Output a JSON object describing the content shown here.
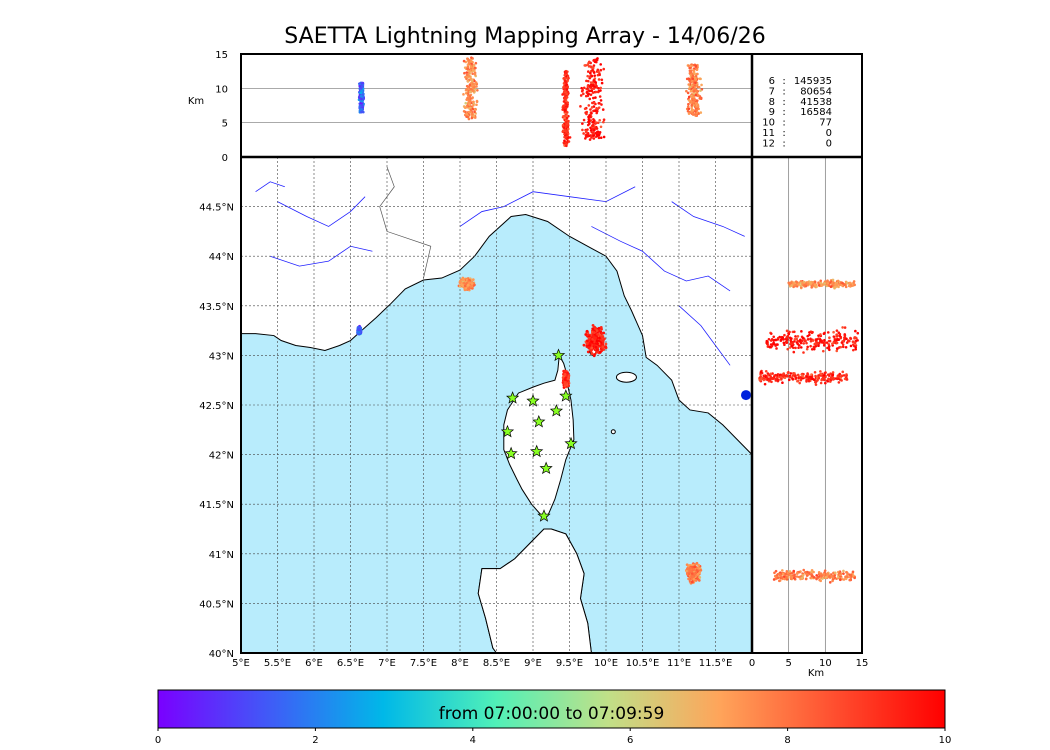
{
  "title": "SAETTA Lightning Mapping Array - 14/06/26",
  "colors": {
    "sea": "#b8ecfc",
    "land": "#ffffff",
    "river": "#2020ff",
    "grid": "#444444",
    "high_src": "#ff3d1a",
    "mid_src": "#ff9a55",
    "low_src": "#30b0ff"
  },
  "stats_panel": {
    "rows": [
      {
        "level": "6",
        "count": "145935",
        "color": "#000000"
      },
      {
        "level": "7",
        "count": "80654",
        "color": "#ff0000"
      },
      {
        "level": "8",
        "count": "41538",
        "color": "#000000"
      },
      {
        "level": "9",
        "count": "16584",
        "color": "#000000"
      },
      {
        "level": "10",
        "count": "77",
        "color": "#000000"
      },
      {
        "level": "11",
        "count": "0",
        "color": "#000000"
      },
      {
        "level": "12",
        "count": "0",
        "color": "#000000"
      }
    ]
  },
  "colorbar": {
    "label": "from 07:00:00 to 07:09:59",
    "ticks": [
      "0",
      "2",
      "4",
      "6",
      "8",
      "10"
    ],
    "stops": [
      "#7a00ff",
      "#3f5cf7",
      "#00b8e8",
      "#50f0b8",
      "#c0e088",
      "#ffa45a",
      "#ff5030",
      "#ff0000"
    ]
  },
  "chart_data": [
    {
      "type": "scatter",
      "panel": "map",
      "xlabel": "",
      "ylabel": "",
      "xlim": [
        5,
        12
      ],
      "ylim": [
        40,
        45
      ],
      "x_ticks": [
        "5°E",
        "5.5°E",
        "6°E",
        "6.5°E",
        "7°E",
        "7.5°E",
        "8°E",
        "8.5°E",
        "9°E",
        "9.5°E",
        "10°E",
        "10.5°E",
        "11°E",
        "11.5°E"
      ],
      "y_ticks": [
        "40°N",
        "40.5°N",
        "41°N",
        "41.5°N",
        "42°N",
        "42.5°N",
        "43°N",
        "43.5°N",
        "44°N",
        "44.5°N"
      ],
      "grid": true,
      "clusters": [
        {
          "lon": 8.1,
          "lat": 43.72,
          "spread_lon": 0.12,
          "spread_lat": 0.07,
          "time": 7.5
        },
        {
          "lon": 9.85,
          "lat": 43.15,
          "spread_lon": 0.18,
          "spread_lat": 0.18,
          "time": 9.5
        },
        {
          "lon": 9.45,
          "lat": 42.76,
          "spread_lon": 0.05,
          "spread_lat": 0.1,
          "time": 9.2
        },
        {
          "lon": 11.2,
          "lat": 40.8,
          "spread_lon": 0.12,
          "spread_lat": 0.12,
          "time": 7.8
        },
        {
          "lon": 6.62,
          "lat": 43.25,
          "spread_lon": 0.03,
          "spread_lat": 0.05,
          "time": 1.5
        }
      ],
      "stations": [
        {
          "lon": 9.35,
          "lat": 43.0
        },
        {
          "lon": 8.72,
          "lat": 42.57
        },
        {
          "lon": 9.0,
          "lat": 42.54
        },
        {
          "lon": 9.45,
          "lat": 42.59
        },
        {
          "lon": 9.32,
          "lat": 42.44
        },
        {
          "lon": 9.08,
          "lat": 42.33
        },
        {
          "lon": 8.65,
          "lat": 42.23
        },
        {
          "lon": 9.52,
          "lat": 42.11
        },
        {
          "lon": 8.7,
          "lat": 42.01
        },
        {
          "lon": 9.05,
          "lat": 42.03
        },
        {
          "lon": 9.18,
          "lat": 41.86
        },
        {
          "lon": 9.15,
          "lat": 41.38
        }
      ]
    },
    {
      "type": "scatter",
      "panel": "top-altitude",
      "xlabel": "",
      "ylabel": "Km",
      "xlim": [
        5,
        12
      ],
      "ylim": [
        0,
        15
      ],
      "y_ticks": [
        "0",
        "5",
        "10",
        "15"
      ],
      "clusters": [
        {
          "lon": 6.65,
          "alt_min": 6.5,
          "alt_max": 10.8,
          "width": 0.04,
          "time": 1.5
        },
        {
          "lon": 8.15,
          "alt_min": 5.5,
          "alt_max": 14.5,
          "width": 0.12,
          "time": 7.5
        },
        {
          "lon": 9.45,
          "alt_min": 1.5,
          "alt_max": 12.5,
          "width": 0.06,
          "time": 9.2
        },
        {
          "lon": 9.82,
          "alt_min": 2.5,
          "alt_max": 14.5,
          "width": 0.2,
          "time": 9.6
        },
        {
          "lon": 11.2,
          "alt_min": 6.0,
          "alt_max": 13.5,
          "width": 0.12,
          "time": 7.8
        }
      ]
    },
    {
      "type": "scatter",
      "panel": "right-altitude",
      "xlabel": "Km",
      "ylabel": "",
      "xlim": [
        0,
        15
      ],
      "ylim": [
        40,
        45
      ],
      "x_ticks": [
        "0",
        "5",
        "10",
        "15"
      ],
      "clusters": [
        {
          "lat": 43.72,
          "alt_min": 5.0,
          "alt_max": 14.0,
          "height": 0.05,
          "time": 7.5
        },
        {
          "lat": 43.15,
          "alt_min": 2.0,
          "alt_max": 14.5,
          "height": 0.15,
          "time": 9.6
        },
        {
          "lat": 42.78,
          "alt_min": 1.0,
          "alt_max": 13.0,
          "height": 0.08,
          "time": 9.2
        },
        {
          "lat": 40.78,
          "alt_min": 3.0,
          "alt_max": 14.0,
          "height": 0.08,
          "time": 7.8
        }
      ]
    }
  ]
}
